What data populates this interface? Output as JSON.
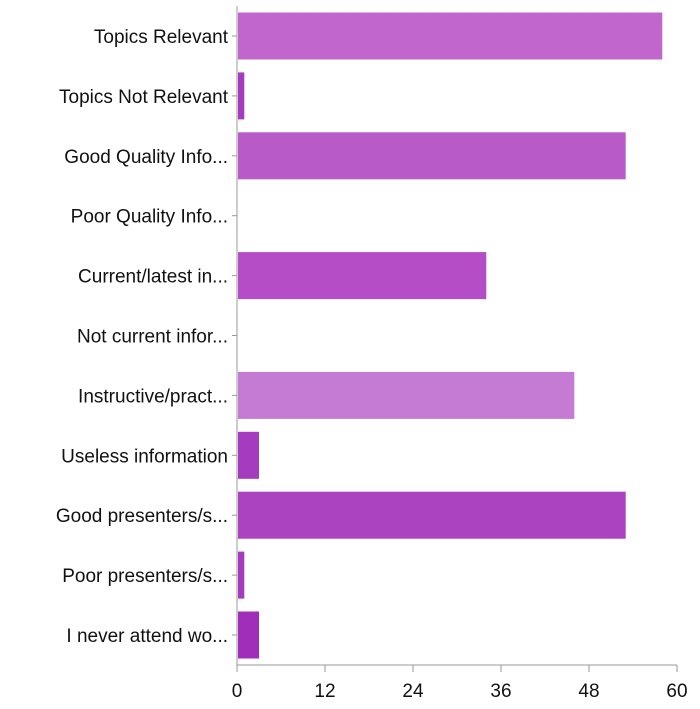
{
  "chart_data": {
    "type": "bar",
    "orientation": "horizontal",
    "categories": [
      "Topics Relevant",
      "Topics Not Relevant",
      "Good Quality Info...",
      "Poor Quality Info...",
      "Current/latest in...",
      "Not current infor...",
      "Instructive/pract...",
      "Useless information",
      "Good presenters/s...",
      "Poor presenters/s...",
      "I never attend wo..."
    ],
    "values": [
      58,
      1,
      53,
      0,
      34,
      0,
      46,
      3,
      53,
      1,
      3
    ],
    "colors": [
      "#c066cc",
      "#a53cc0",
      "#b95ac9",
      "#c066cc",
      "#b44dc6",
      "#c066cc",
      "#c57ad4",
      "#a53cc0",
      "#ab42c0",
      "#a53cc0",
      "#a12eb9"
    ],
    "xlim": [
      0,
      60
    ],
    "xticks": [
      0,
      12,
      24,
      36,
      48,
      60
    ],
    "xlabel": "",
    "ylabel": "",
    "grid": false,
    "legend": "none"
  }
}
